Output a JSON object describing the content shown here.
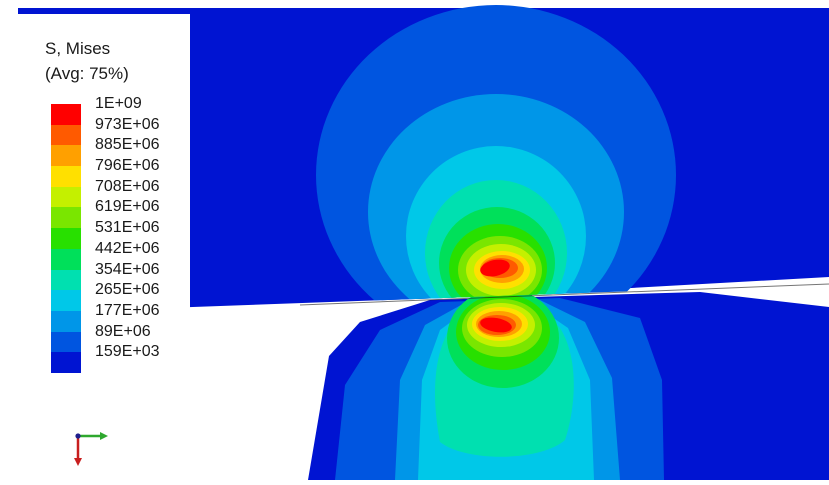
{
  "legend": {
    "title_line1": "S, Mises",
    "title_line2": "(Avg: 75%)",
    "entries": [
      {
        "label": "1E+09",
        "color": "#ff0000"
      },
      {
        "label": "973E+06",
        "color": "#ff5a00"
      },
      {
        "label": "885E+06",
        "color": "#ffa000"
      },
      {
        "label": "796E+06",
        "color": "#ffe000"
      },
      {
        "label": "708E+06",
        "color": "#c4f000"
      },
      {
        "label": "619E+06",
        "color": "#7ae600"
      },
      {
        "label": "531E+06",
        "color": "#28e000"
      },
      {
        "label": "442E+06",
        "color": "#00e05a"
      },
      {
        "label": "354E+06",
        "color": "#00e0b0"
      },
      {
        "label": "265E+06",
        "color": "#00c8e8"
      },
      {
        "label": "177E+06",
        "color": "#0096e8"
      },
      {
        "label": "89E+06",
        "color": "#0055e0"
      },
      {
        "label": "159E+03",
        "color": "#0014d2"
      }
    ]
  },
  "triad": {
    "axis_1_color": "#2ea82e",
    "axis_2_color": "#c81e1e",
    "origin_color": "#1e1e8c"
  },
  "contour_colors": {
    "background_blue": "#0014d2",
    "level_1": "#0055e0",
    "level_2": "#0096e8",
    "level_3": "#00c8e8",
    "level_4": "#00e0b0",
    "level_5": "#00e05a",
    "level_6": "#28e000",
    "level_7": "#7ae600",
    "level_8": "#c4f000",
    "level_9": "#ffe000",
    "level_10": "#ffa000",
    "level_11": "#ff5a00",
    "level_12": "#ff0000"
  }
}
